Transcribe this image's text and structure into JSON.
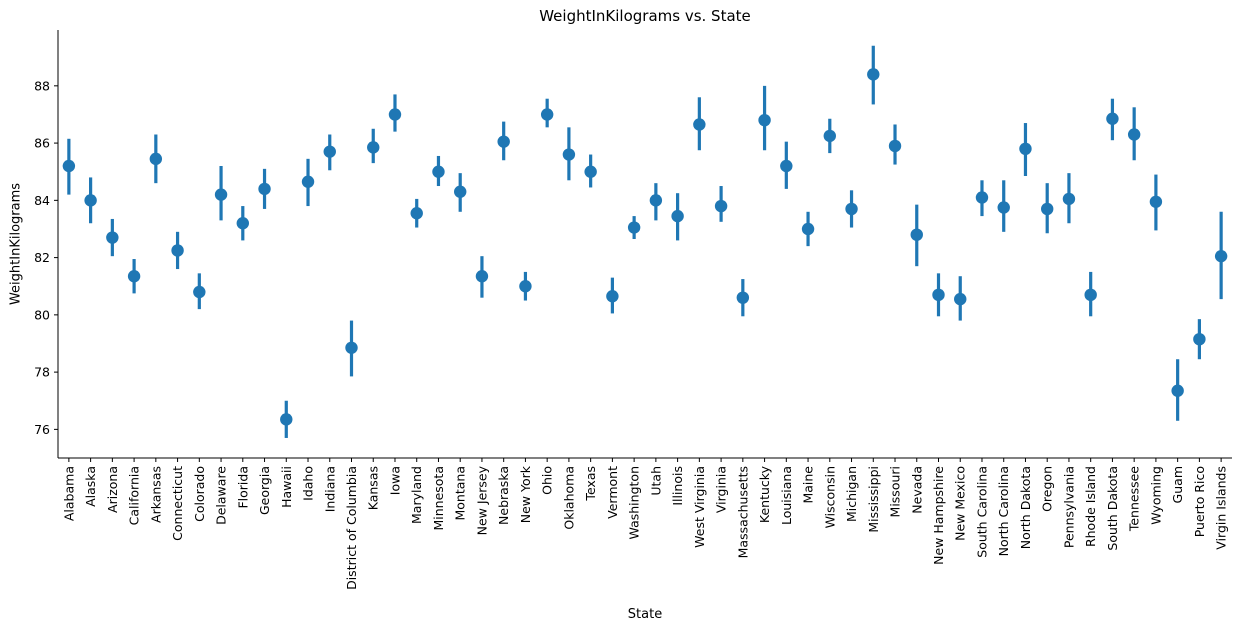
{
  "chart_data": {
    "type": "point",
    "title": "WeightInKilograms vs. State",
    "xlabel": "State",
    "ylabel": "WeightInKilograms",
    "ylim": [
      75.0,
      89.95
    ],
    "yticks": [
      76,
      78,
      80,
      82,
      84,
      86,
      88
    ],
    "grid": false,
    "legend": "none",
    "color": "#1f77b4",
    "categories": [
      "Alabama",
      "Alaska",
      "Arizona",
      "California",
      "Arkansas",
      "Connecticut",
      "Colorado",
      "Delaware",
      "Florida",
      "Georgia",
      "Hawaii",
      "Idaho",
      "Indiana",
      "District of Columbia",
      "Kansas",
      "Iowa",
      "Maryland",
      "Minnesota",
      "Montana",
      "New Jersey",
      "Nebraska",
      "New York",
      "Ohio",
      "Oklahoma",
      "Texas",
      "Vermont",
      "Washington",
      "Utah",
      "Illinois",
      "West Virginia",
      "Virginia",
      "Massachusetts",
      "Kentucky",
      "Louisiana",
      "Maine",
      "Wisconsin",
      "Michigan",
      "Mississippi",
      "Missouri",
      "Nevada",
      "New Hampshire",
      "New Mexico",
      "South Carolina",
      "North Carolina",
      "North Dakota",
      "Oregon",
      "Pennsylvania",
      "Rhode Island",
      "South Dakota",
      "Tennessee",
      "Wyoming",
      "Guam",
      "Puerto Rico",
      "Virgin Islands"
    ],
    "values": [
      85.2,
      84.0,
      82.7,
      81.35,
      85.45,
      82.25,
      80.8,
      84.2,
      83.2,
      84.4,
      76.35,
      84.65,
      85.7,
      78.85,
      85.85,
      87.0,
      83.55,
      85.0,
      84.3,
      81.35,
      86.05,
      81.0,
      87.0,
      85.6,
      85.0,
      80.65,
      83.05,
      84.0,
      83.45,
      86.65,
      83.8,
      80.6,
      86.8,
      85.2,
      83.0,
      86.25,
      83.7,
      88.4,
      85.9,
      82.8,
      80.7,
      80.55,
      84.1,
      83.75,
      85.8,
      83.7,
      84.05,
      80.7,
      86.85,
      86.3,
      83.95,
      77.35,
      79.15,
      82.05
    ],
    "ci_low": [
      84.2,
      83.2,
      82.05,
      80.75,
      84.6,
      81.6,
      80.2,
      83.3,
      82.6,
      83.7,
      75.7,
      83.8,
      85.05,
      77.85,
      85.3,
      86.4,
      83.05,
      84.5,
      83.6,
      80.6,
      85.4,
      80.5,
      86.55,
      84.7,
      84.45,
      80.05,
      82.65,
      83.3,
      82.6,
      85.75,
      83.25,
      79.95,
      85.75,
      84.4,
      82.4,
      85.65,
      83.05,
      87.35,
      85.25,
      81.7,
      79.95,
      79.8,
      83.45,
      82.9,
      84.85,
      82.85,
      83.2,
      79.95,
      86.1,
      85.4,
      82.95,
      76.3,
      78.45,
      80.55
    ],
    "ci_high": [
      86.15,
      84.8,
      83.35,
      81.95,
      86.3,
      82.9,
      81.45,
      85.2,
      83.8,
      85.1,
      77.0,
      85.45,
      86.3,
      79.8,
      86.5,
      87.7,
      84.05,
      85.55,
      84.95,
      82.05,
      86.75,
      81.5,
      87.55,
      86.55,
      85.6,
      81.3,
      83.45,
      84.6,
      84.25,
      87.6,
      84.5,
      81.25,
      88.0,
      86.05,
      83.6,
      86.85,
      84.35,
      89.4,
      86.65,
      83.85,
      81.45,
      81.35,
      84.7,
      84.7,
      86.7,
      84.6,
      84.95,
      81.5,
      87.55,
      87.25,
      84.9,
      78.45,
      79.85,
      83.6
    ]
  }
}
